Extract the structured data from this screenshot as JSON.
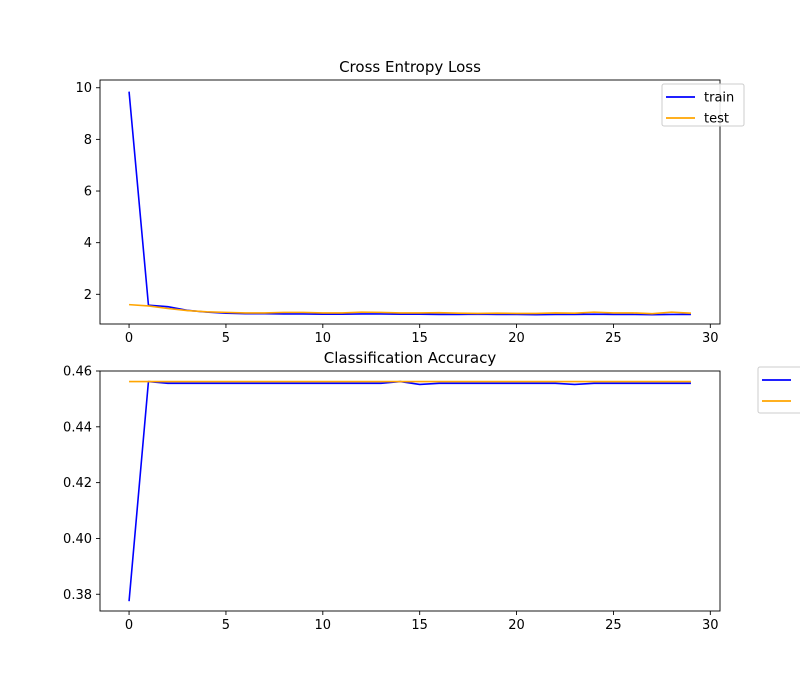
{
  "colors": {
    "train": "#0000ff",
    "test": "#ffa500"
  },
  "chart_data": [
    {
      "type": "line",
      "title": "Cross Entropy Loss",
      "xlabel": "",
      "ylabel": "",
      "xlim": [
        -1.5,
        30.5
      ],
      "ylim": [
        0.85,
        10.3
      ],
      "xticks": [
        0,
        5,
        10,
        15,
        20,
        25,
        30
      ],
      "yticks": [
        2,
        4,
        6,
        8,
        10
      ],
      "legend": {
        "placement": "upper-right",
        "show_labels": true
      },
      "series": [
        {
          "name": "train",
          "color": "#0000ff",
          "x": [
            0,
            1,
            2,
            3,
            4,
            5,
            6,
            7,
            8,
            9,
            10,
            11,
            12,
            13,
            14,
            15,
            16,
            17,
            18,
            19,
            20,
            21,
            22,
            23,
            24,
            25,
            26,
            27,
            28,
            29
          ],
          "y": [
            9.85,
            1.58,
            1.52,
            1.38,
            1.31,
            1.27,
            1.25,
            1.25,
            1.24,
            1.24,
            1.23,
            1.23,
            1.24,
            1.24,
            1.23,
            1.23,
            1.22,
            1.22,
            1.23,
            1.22,
            1.22,
            1.21,
            1.22,
            1.22,
            1.23,
            1.22,
            1.22,
            1.21,
            1.22,
            1.22
          ]
        },
        {
          "name": "test",
          "color": "#ffa500",
          "x": [
            0,
            1,
            2,
            3,
            4,
            5,
            6,
            7,
            8,
            9,
            10,
            11,
            12,
            13,
            14,
            15,
            16,
            17,
            18,
            19,
            20,
            21,
            22,
            23,
            24,
            25,
            26,
            27,
            28,
            29
          ],
          "y": [
            1.6,
            1.55,
            1.45,
            1.37,
            1.32,
            1.3,
            1.28,
            1.28,
            1.3,
            1.3,
            1.28,
            1.28,
            1.31,
            1.3,
            1.28,
            1.28,
            1.29,
            1.27,
            1.26,
            1.27,
            1.26,
            1.26,
            1.28,
            1.27,
            1.31,
            1.28,
            1.28,
            1.25,
            1.31,
            1.27
          ]
        }
      ]
    },
    {
      "type": "line",
      "title": "Classification Accuracy",
      "xlabel": "",
      "ylabel": "",
      "xlim": [
        -1.5,
        30.5
      ],
      "ylim": [
        0.374,
        0.46
      ],
      "xticks": [
        0,
        5,
        10,
        15,
        20,
        25,
        30
      ],
      "yticks": [
        0.38,
        0.4,
        0.42,
        0.44,
        0.46
      ],
      "ytick_labels": [
        "0.38",
        "0.40",
        "0.42",
        "0.44",
        "0.46"
      ],
      "legend": {
        "placement": "outside-right",
        "show_labels": false
      },
      "series": [
        {
          "name": "train",
          "color": "#0000ff",
          "x": [
            0,
            1,
            2,
            3,
            4,
            5,
            6,
            7,
            8,
            9,
            10,
            11,
            12,
            13,
            14,
            15,
            16,
            17,
            18,
            19,
            20,
            21,
            22,
            23,
            24,
            25,
            26,
            27,
            28,
            29
          ],
          "y": [
            0.3775,
            0.4562,
            0.4556,
            0.4556,
            0.4556,
            0.4556,
            0.4556,
            0.4556,
            0.4556,
            0.4556,
            0.4556,
            0.4556,
            0.4556,
            0.4556,
            0.4562,
            0.4552,
            0.4556,
            0.4556,
            0.4556,
            0.4556,
            0.4556,
            0.4556,
            0.4556,
            0.4552,
            0.4556,
            0.4556,
            0.4556,
            0.4556,
            0.4556,
            0.4556
          ]
        },
        {
          "name": "test",
          "color": "#ffa500",
          "x": [
            0,
            1,
            2,
            3,
            4,
            5,
            6,
            7,
            8,
            9,
            10,
            11,
            12,
            13,
            14,
            15,
            16,
            17,
            18,
            19,
            20,
            21,
            22,
            23,
            24,
            25,
            26,
            27,
            28,
            29
          ],
          "y": [
            0.4562,
            0.4562,
            0.4562,
            0.4562,
            0.4562,
            0.4562,
            0.4562,
            0.4562,
            0.4562,
            0.4562,
            0.4562,
            0.4562,
            0.4562,
            0.4562,
            0.4562,
            0.4562,
            0.4562,
            0.4562,
            0.4562,
            0.4562,
            0.4562,
            0.4562,
            0.4562,
            0.4562,
            0.4562,
            0.4562,
            0.4562,
            0.4562,
            0.4562,
            0.4562
          ]
        }
      ]
    }
  ]
}
